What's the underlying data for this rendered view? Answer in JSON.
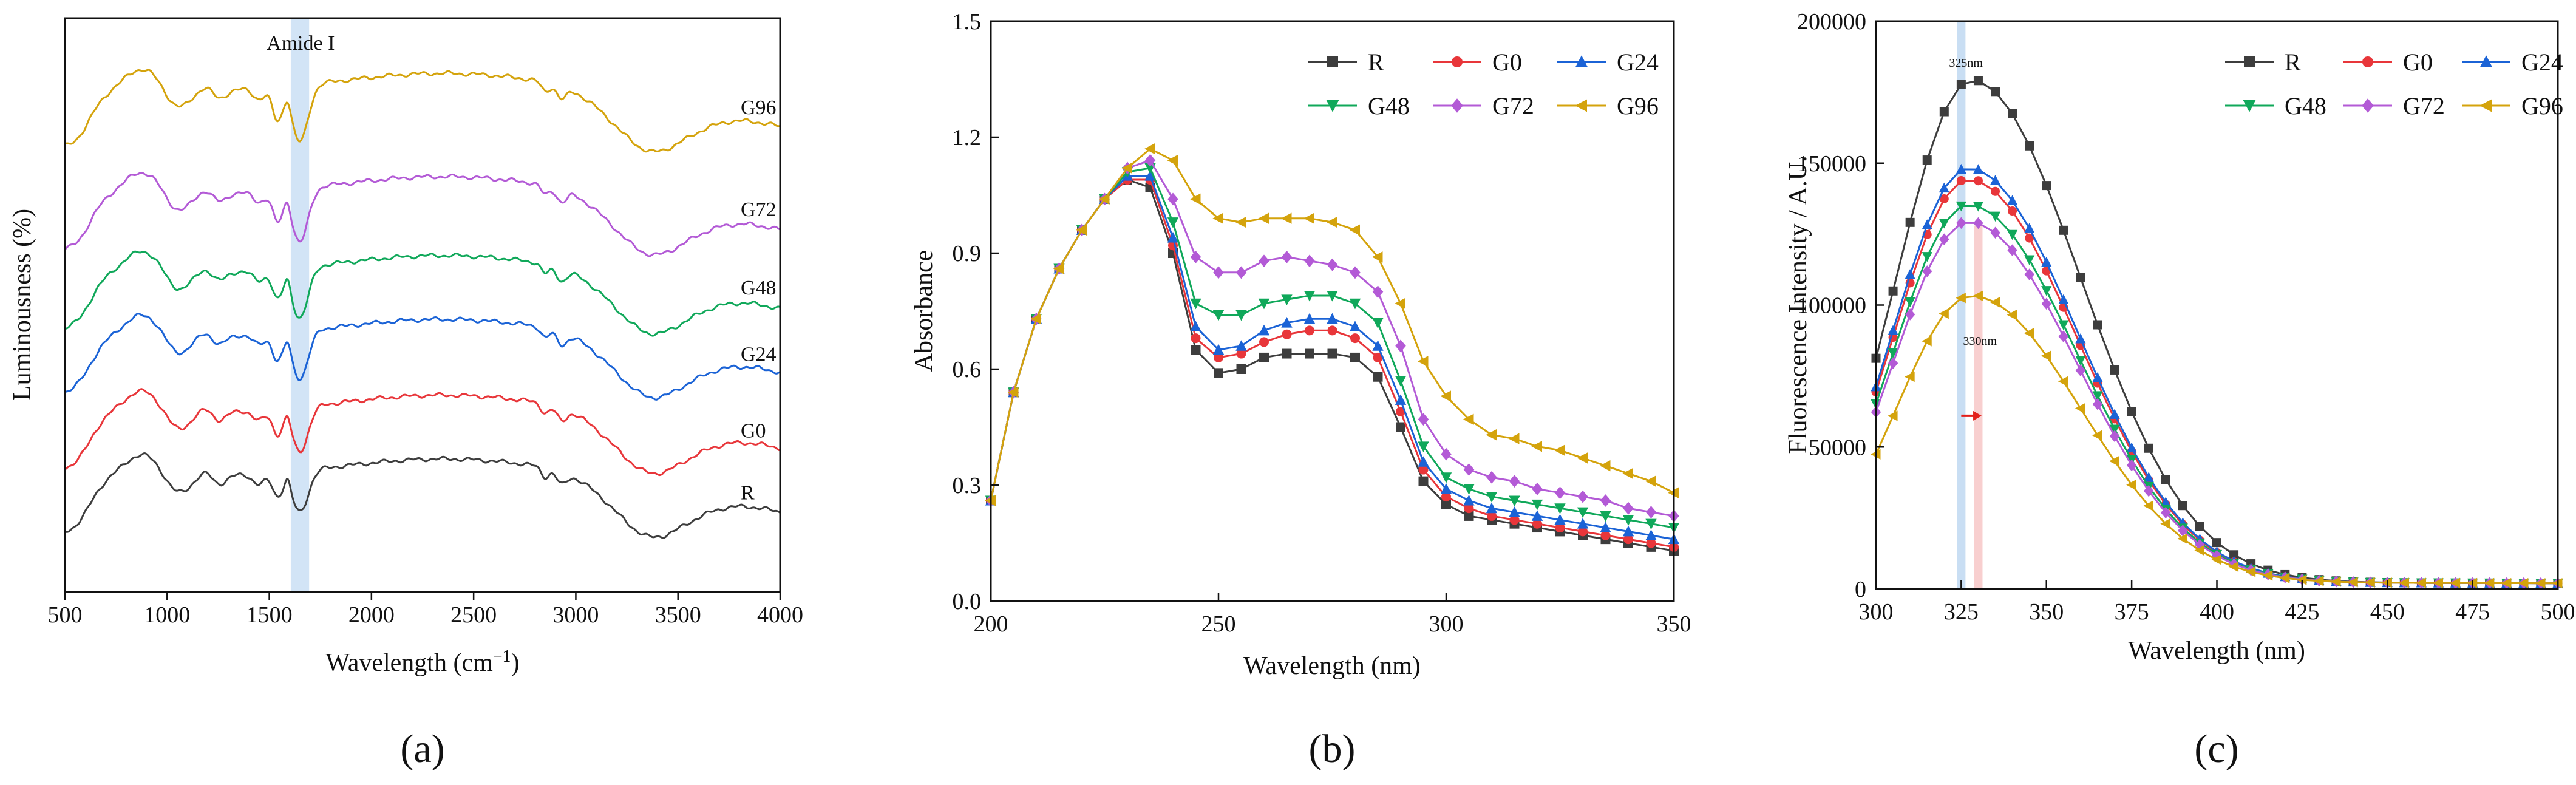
{
  "colors": {
    "R": "#3d3d3d",
    "G0": "#e8363a",
    "G24": "#1b63d6",
    "G48": "#10a85a",
    "G72": "#b35ad6",
    "G96": "#d4a30c",
    "band_blue": "#9cc3ea",
    "band_red": "#f2a7a7",
    "arrow": "#e3201b"
  },
  "captions": {
    "a": "(a)",
    "b": "(b)",
    "c": "(c)"
  },
  "chart_data": [
    {
      "id": "a",
      "type": "line",
      "title": "",
      "xlabel_main": "Wavelength (cm",
      "xlabel_sup": "−1",
      "xlabel_end": ")",
      "ylabel": "Luminousness (%)",
      "xlim": [
        500,
        4000
      ],
      "x_ticks": [
        500,
        1000,
        1500,
        2000,
        2500,
        3000,
        3500,
        4000
      ],
      "y_ticks_shown": false,
      "annotation": "Amide I",
      "band_center": 1650,
      "band_width": 90,
      "series_labels": [
        "R",
        "G0",
        "G24",
        "G48",
        "G72",
        "G96"
      ],
      "series_offsets": [
        0,
        1,
        2,
        3,
        4,
        5
      ]
    },
    {
      "id": "b",
      "type": "line",
      "title": "",
      "xlabel": "Wavelength (nm)",
      "ylabel": "Absorbance",
      "xlim": [
        200,
        350
      ],
      "ylim": [
        0.0,
        1.5
      ],
      "x_ticks": [
        200,
        250,
        300,
        350
      ],
      "y_ticks": [
        "0.0",
        "0.3",
        "0.6",
        "0.9",
        "1.2",
        "1.5"
      ],
      "legend": [
        "R",
        "G0",
        "G24",
        "G48",
        "G72",
        "G96"
      ],
      "legend_position": "top-right",
      "series": [
        {
          "name": "R",
          "x": [
            200,
            205,
            210,
            215,
            220,
            225,
            230,
            235,
            240,
            245,
            250,
            255,
            260,
            265,
            270,
            275,
            280,
            285,
            290,
            295,
            300,
            305,
            310,
            315,
            320,
            325,
            330,
            335,
            340,
            345,
            350
          ],
          "values": [
            0.26,
            0.54,
            0.73,
            0.86,
            0.96,
            1.04,
            1.09,
            1.07,
            0.9,
            0.65,
            0.59,
            0.6,
            0.63,
            0.64,
            0.64,
            0.64,
            0.63,
            0.58,
            0.45,
            0.31,
            0.25,
            0.22,
            0.21,
            0.2,
            0.19,
            0.18,
            0.17,
            0.16,
            0.15,
            0.14,
            0.13
          ]
        },
        {
          "name": "G0",
          "x": [
            200,
            205,
            210,
            215,
            220,
            225,
            230,
            235,
            240,
            245,
            250,
            255,
            260,
            265,
            270,
            275,
            280,
            285,
            290,
            295,
            300,
            305,
            310,
            315,
            320,
            325,
            330,
            335,
            340,
            345,
            350
          ],
          "values": [
            0.26,
            0.54,
            0.73,
            0.86,
            0.96,
            1.04,
            1.09,
            1.09,
            0.92,
            0.68,
            0.63,
            0.64,
            0.67,
            0.69,
            0.7,
            0.7,
            0.68,
            0.63,
            0.49,
            0.34,
            0.27,
            0.24,
            0.22,
            0.21,
            0.2,
            0.19,
            0.18,
            0.17,
            0.16,
            0.15,
            0.14
          ]
        },
        {
          "name": "G24",
          "x": [
            200,
            205,
            210,
            215,
            220,
            225,
            230,
            235,
            240,
            245,
            250,
            255,
            260,
            265,
            270,
            275,
            280,
            285,
            290,
            295,
            300,
            305,
            310,
            315,
            320,
            325,
            330,
            335,
            340,
            345,
            350
          ],
          "values": [
            0.26,
            0.54,
            0.73,
            0.86,
            0.96,
            1.04,
            1.1,
            1.1,
            0.94,
            0.71,
            0.65,
            0.66,
            0.7,
            0.72,
            0.73,
            0.73,
            0.71,
            0.66,
            0.52,
            0.36,
            0.29,
            0.26,
            0.24,
            0.23,
            0.22,
            0.21,
            0.2,
            0.19,
            0.18,
            0.17,
            0.16
          ]
        },
        {
          "name": "G48",
          "x": [
            200,
            205,
            210,
            215,
            220,
            225,
            230,
            235,
            240,
            245,
            250,
            255,
            260,
            265,
            270,
            275,
            280,
            285,
            290,
            295,
            300,
            305,
            310,
            315,
            320,
            325,
            330,
            335,
            340,
            345,
            350
          ],
          "values": [
            0.26,
            0.54,
            0.73,
            0.86,
            0.96,
            1.04,
            1.11,
            1.12,
            0.98,
            0.77,
            0.74,
            0.74,
            0.77,
            0.78,
            0.79,
            0.79,
            0.77,
            0.72,
            0.57,
            0.4,
            0.32,
            0.29,
            0.27,
            0.26,
            0.25,
            0.24,
            0.23,
            0.22,
            0.21,
            0.2,
            0.19
          ]
        },
        {
          "name": "G72",
          "x": [
            200,
            205,
            210,
            215,
            220,
            225,
            230,
            235,
            240,
            245,
            250,
            255,
            260,
            265,
            270,
            275,
            280,
            285,
            290,
            295,
            300,
            305,
            310,
            315,
            320,
            325,
            330,
            335,
            340,
            345,
            350
          ],
          "values": [
            0.26,
            0.54,
            0.73,
            0.86,
            0.96,
            1.04,
            1.12,
            1.14,
            1.04,
            0.89,
            0.85,
            0.85,
            0.88,
            0.89,
            0.88,
            0.87,
            0.85,
            0.8,
            0.66,
            0.47,
            0.38,
            0.34,
            0.32,
            0.31,
            0.29,
            0.28,
            0.27,
            0.26,
            0.24,
            0.23,
            0.22
          ]
        },
        {
          "name": "G96",
          "x": [
            200,
            205,
            210,
            215,
            220,
            225,
            230,
            235,
            240,
            245,
            250,
            255,
            260,
            265,
            270,
            275,
            280,
            285,
            290,
            295,
            300,
            305,
            310,
            315,
            320,
            325,
            330,
            335,
            340,
            345,
            350
          ],
          "values": [
            0.26,
            0.54,
            0.73,
            0.86,
            0.96,
            1.04,
            1.12,
            1.17,
            1.14,
            1.04,
            0.99,
            0.98,
            0.99,
            0.99,
            0.99,
            0.98,
            0.96,
            0.89,
            0.77,
            0.62,
            0.53,
            0.47,
            0.43,
            0.42,
            0.4,
            0.39,
            0.37,
            0.35,
            0.33,
            0.31,
            0.28
          ]
        }
      ]
    },
    {
      "id": "c",
      "type": "line",
      "title": "",
      "xlabel": "Wavelength (nm)",
      "ylabel": "Fluorescence Intensity / A.U.",
      "xlim": [
        300,
        500
      ],
      "ylim": [
        0,
        200000
      ],
      "x_ticks": [
        300,
        325,
        350,
        375,
        400,
        425,
        450,
        475,
        500
      ],
      "y_ticks": [
        "0",
        "50000",
        "100000",
        "150000",
        "200000"
      ],
      "legend": [
        "R",
        "G0",
        "G24",
        "G48",
        "G72",
        "G96"
      ],
      "legend_position": "top-right",
      "annotations": [
        "325nm",
        "330nm"
      ],
      "band_blue_center": 325,
      "band_red_center": 330,
      "band_width": 2.5,
      "arrow_from": 325,
      "arrow_to": 331,
      "arrow_y": 61000,
      "series": [
        {
          "name": "R",
          "peak_x": 328,
          "peak": 177000,
          "base": 87000
        },
        {
          "name": "G0",
          "peak_x": 327,
          "peak": 142000,
          "base": 76000
        },
        {
          "name": "G24",
          "peak_x": 327,
          "peak": 146000,
          "base": 80000
        },
        {
          "name": "G48",
          "peak_x": 327,
          "peak": 133000,
          "base": 70000
        },
        {
          "name": "G72",
          "peak_x": 327,
          "peak": 127000,
          "base": 68000
        },
        {
          "name": "G96",
          "peak_x": 328,
          "peak": 101000,
          "base": 54000
        }
      ]
    }
  ]
}
